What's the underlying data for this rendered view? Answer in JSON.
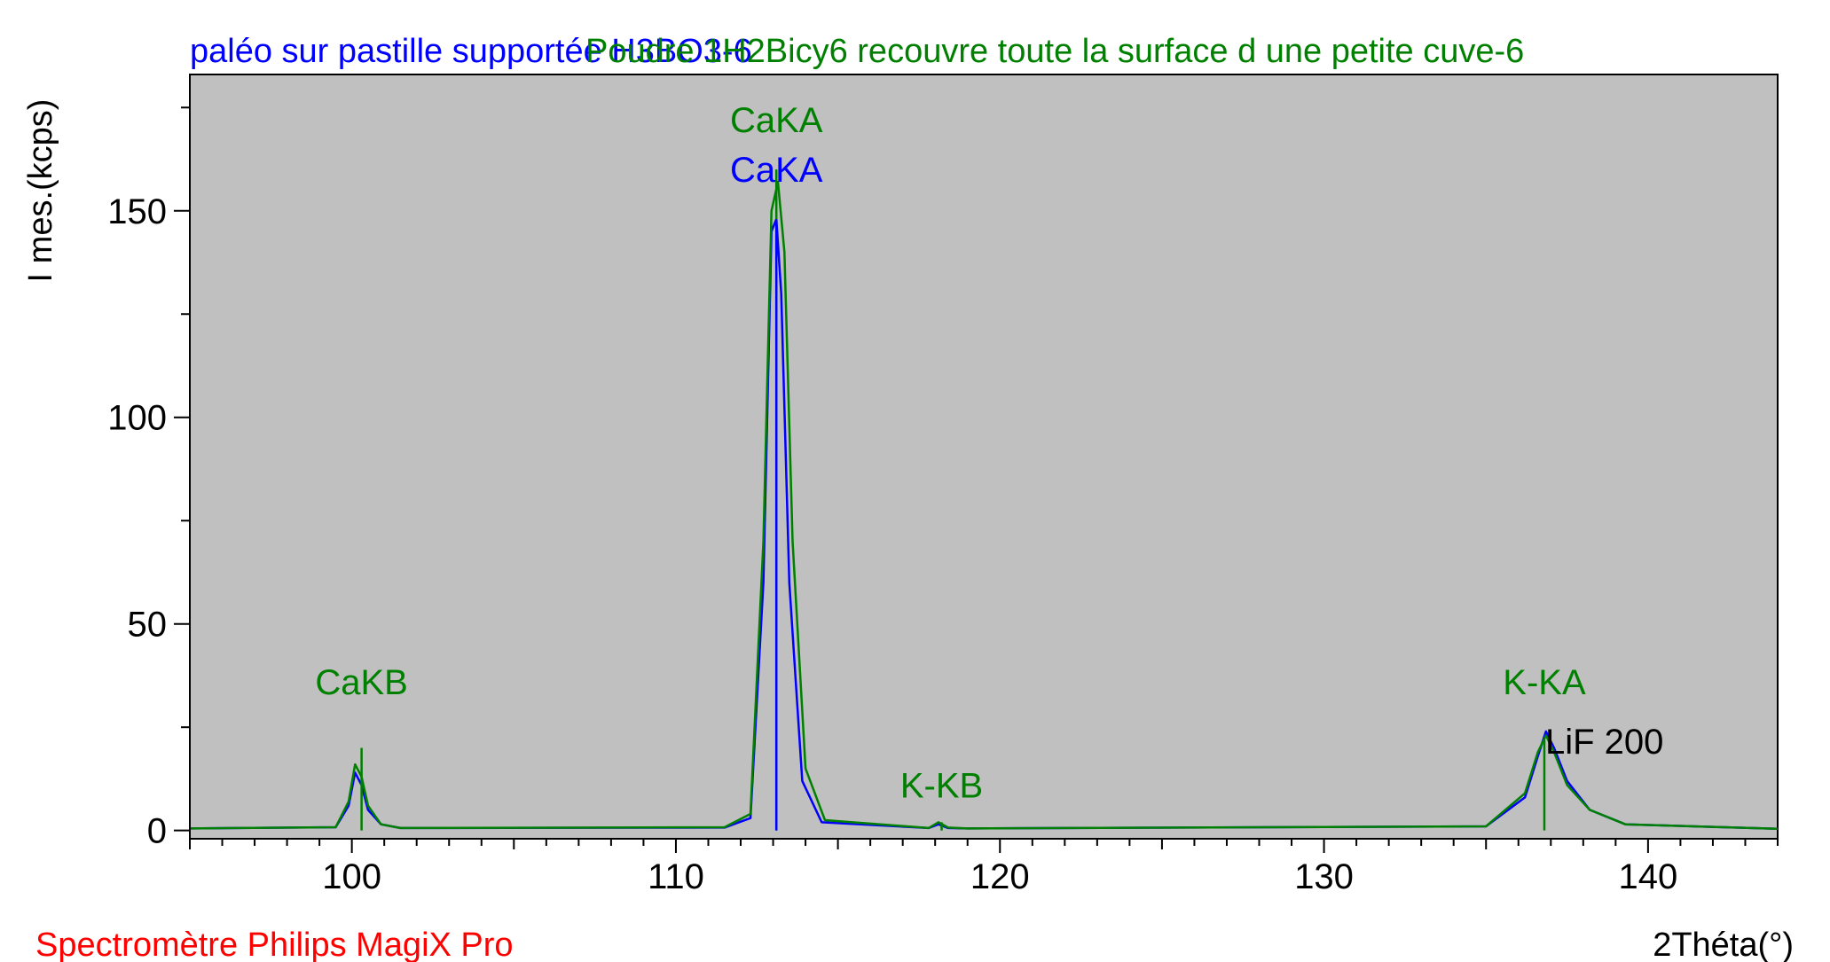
{
  "chart_data": {
    "type": "line",
    "titles": [
      {
        "text": "paléo sur pastille supportée H3BO3-6",
        "color": "#0000ff"
      },
      {
        "text": "Poudre 1H2Bicy6 recouvre toute la surface d une petite cuve-6",
        "color": "#008000"
      }
    ],
    "xlabel": "2Théta(°)",
    "ylabel": "I mes.(kcps)",
    "footer": "Spectromètre Philips MagiX Pro",
    "crystal": "LiF 200",
    "xlim": [
      95,
      144
    ],
    "ylim": [
      -2,
      183
    ],
    "xticks": [
      100,
      110,
      120,
      130,
      140
    ],
    "yticks": [
      0,
      50,
      100,
      150
    ],
    "grid": false,
    "plot_background": "#c0c0c0",
    "series": [
      {
        "color": "#0000ff",
        "x": [
          95,
          99.5,
          99.9,
          100.1,
          100.3,
          100.5,
          100.9,
          101.5,
          111.5,
          112.3,
          112.7,
          112.95,
          113.1,
          113.25,
          113.5,
          113.9,
          114.5,
          117.8,
          118.1,
          118.4,
          119,
          135,
          136.2,
          136.6,
          136.85,
          137.1,
          137.5,
          138.2,
          139.3,
          144
        ],
        "y": [
          0.5,
          0.8,
          6,
          14,
          11,
          5,
          1.5,
          0.6,
          0.7,
          3,
          60,
          145,
          148,
          130,
          60,
          12,
          2,
          0.6,
          1.5,
          0.6,
          0.5,
          1,
          8,
          18,
          24,
          20,
          12,
          5,
          1.5,
          0.4
        ]
      },
      {
        "color": "#008000",
        "x": [
          95,
          99.5,
          99.9,
          100.1,
          100.3,
          100.5,
          100.9,
          101.5,
          111.5,
          112.3,
          112.7,
          112.95,
          113.15,
          113.35,
          113.6,
          114,
          114.6,
          117.8,
          118.1,
          118.4,
          119,
          135,
          136.2,
          136.6,
          136.85,
          137.1,
          137.5,
          138.2,
          139.3,
          144
        ],
        "y": [
          0.5,
          0.8,
          7,
          16,
          13,
          6,
          1.5,
          0.6,
          0.8,
          4,
          70,
          150,
          157,
          140,
          70,
          15,
          2.5,
          0.6,
          2,
          0.7,
          0.5,
          1,
          9,
          19,
          23,
          19,
          11,
          5,
          1.5,
          0.4
        ]
      }
    ],
    "peak_markers": [
      {
        "x": 100.3,
        "height": 20,
        "color": "#008000"
      },
      {
        "x": 113.1,
        "height": 160,
        "color": "#008000"
      },
      {
        "x": 113.1,
        "height": 148,
        "color": "#0000ff"
      },
      {
        "x": 118.2,
        "height": 2,
        "color": "#008000"
      },
      {
        "x": 136.8,
        "height": 22,
        "color": "#008000"
      }
    ],
    "annotations": [
      {
        "text": "CaKB",
        "x": 100.3,
        "y": 33,
        "color": "#008000"
      },
      {
        "text": "CaKA",
        "x": 113.1,
        "y": 169,
        "color": "#008000"
      },
      {
        "text": "CaKA",
        "x": 113.1,
        "y": 157,
        "color": "#0000ff"
      },
      {
        "text": "K-KB",
        "x": 118.2,
        "y": 8,
        "color": "#008000"
      },
      {
        "text": "K-KA",
        "x": 136.8,
        "y": 33,
        "color": "#008000"
      }
    ]
  }
}
